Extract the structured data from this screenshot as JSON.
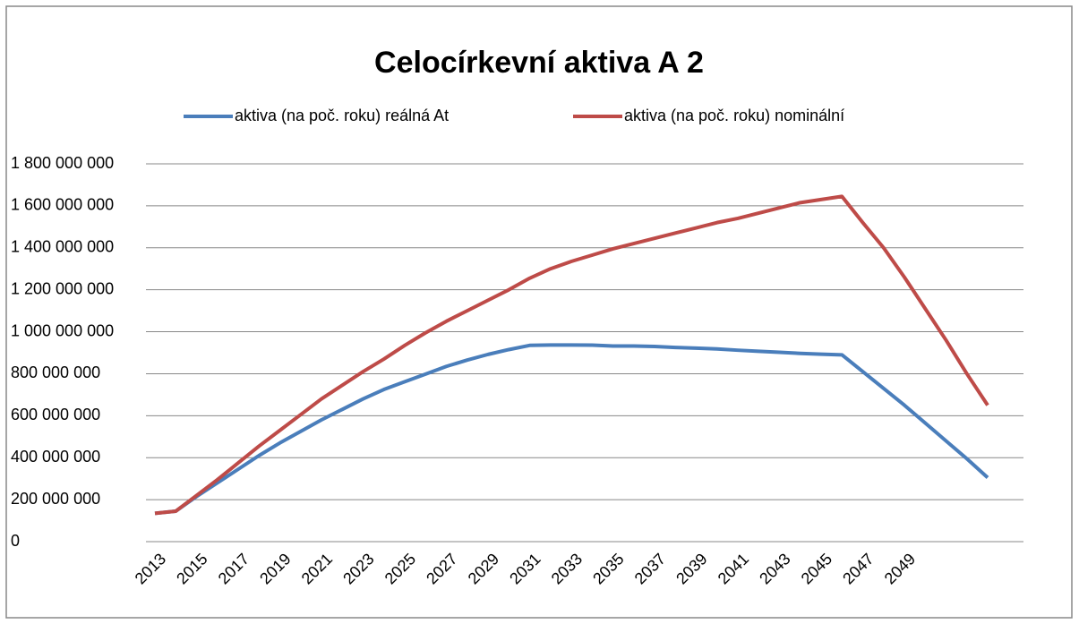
{
  "chart_data": {
    "type": "line",
    "title": "Celocírkevní aktiva  A 2",
    "categories": [
      "2013",
      null,
      "2015",
      null,
      "2017",
      null,
      "2019",
      null,
      "2021",
      null,
      "2023",
      null,
      "2025",
      null,
      "2027",
      null,
      "2029",
      null,
      "2031",
      null,
      "2033",
      null,
      "2035",
      null,
      "2037",
      null,
      "2039",
      null,
      "2041",
      null,
      "2043",
      null,
      "2045",
      null,
      "2047",
      null,
      "2049",
      null,
      null,
      null,
      null
    ],
    "series": [
      {
        "name": "aktiva (na poč. roku) reálná At",
        "color": "#4a7ebb",
        "values": [
          135000000,
          145000000,
          215000000,
          280000000,
          345000000,
          410000000,
          470000000,
          525000000,
          580000000,
          630000000,
          680000000,
          725000000,
          762000000,
          798000000,
          835000000,
          865000000,
          892000000,
          915000000,
          935000000,
          937000000,
          937000000,
          936000000,
          932000000,
          932000000,
          930000000,
          925000000,
          922000000,
          918000000,
          912000000,
          907000000,
          902000000,
          897000000,
          893000000,
          890000000,
          810000000,
          730000000,
          650000000,
          565000000,
          480000000,
          395000000,
          305000000
        ]
      },
      {
        "name": "aktiva (na poč. roku) nominální",
        "color": "#be4b48",
        "values": [
          135000000,
          145000000,
          220000000,
          295000000,
          375000000,
          455000000,
          530000000,
          605000000,
          680000000,
          745000000,
          810000000,
          870000000,
          935000000,
          995000000,
          1050000000,
          1100000000,
          1150000000,
          1200000000,
          1255000000,
          1300000000,
          1335000000,
          1365000000,
          1395000000,
          1420000000,
          1445000000,
          1470000000,
          1495000000,
          1520000000,
          1540000000,
          1565000000,
          1590000000,
          1615000000,
          1630000000,
          1645000000,
          1520000000,
          1400000000,
          1260000000,
          1110000000,
          960000000,
          800000000,
          650000000
        ]
      }
    ],
    "ylim": [
      0,
      1800000000
    ],
    "yticks": [
      0,
      {
        "value": 200000000,
        "label": "200 000 000"
      },
      {
        "value": 400000000,
        "label": "400 000 000"
      },
      {
        "value": 600000000,
        "label": "600 000 000"
      },
      {
        "value": 800000000,
        "label": "800 000 000"
      },
      {
        "value": 1000000000,
        "label": "1 000 000 000"
      },
      {
        "value": 1200000000,
        "label": "1 200 000 000"
      },
      {
        "value": 1400000000,
        "label": "1 400 000 000"
      },
      {
        "value": 1600000000,
        "label": "1 600 000 000"
      },
      {
        "value": 1800000000,
        "label": "1 800 000 000"
      }
    ],
    "grid": true,
    "legend": "top"
  }
}
